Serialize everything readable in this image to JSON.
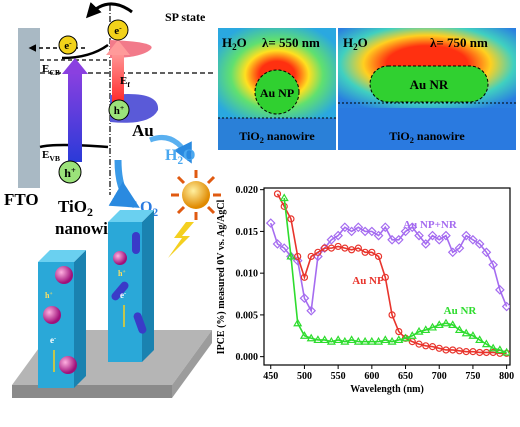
{
  "diagram": {
    "sp_state": "SP state",
    "e_cb": {
      "text": "E",
      "sub": "CB"
    },
    "e_f": {
      "text": "E",
      "sub": "f"
    },
    "e_vb": {
      "text": "E",
      "sub": "VB"
    },
    "electron": {
      "text": "e",
      "sup": "-"
    },
    "hole": {
      "text": "h",
      "sup": "+"
    },
    "au": "Au",
    "fto": "FTO",
    "tio2": {
      "text": "TiO",
      "sub": "2",
      "rest": "nanowire"
    },
    "h2o": {
      "text": "H",
      "sub": "2",
      "rest": "O"
    },
    "o2": {
      "text": "O",
      "sub": "2"
    }
  },
  "simulations": [
    {
      "medium": {
        "text": "H",
        "sub": "2",
        "rest": "O"
      },
      "wavelength": "λ= 550 nm",
      "particle": "Au NP",
      "substrate": {
        "text": "TiO",
        "sub": "2",
        "rest": " nanowire"
      }
    },
    {
      "medium": {
        "text": "H",
        "sub": "2",
        "rest": "O"
      },
      "wavelength": "λ= 750 nm",
      "particle": "Au NR",
      "substrate": {
        "text": "TiO",
        "sub": "2",
        "rest": " nanowire"
      }
    }
  ],
  "chart_data": {
    "type": "line",
    "x_label": "Wavelength (nm)",
    "y_label": "IPCE (%) measured 0V vs. Ag/AgCl",
    "x": [
      450,
      460,
      470,
      480,
      490,
      500,
      510,
      520,
      530,
      540,
      550,
      560,
      570,
      580,
      590,
      600,
      610,
      620,
      630,
      640,
      650,
      660,
      670,
      680,
      690,
      700,
      710,
      720,
      730,
      740,
      750,
      760,
      770,
      780,
      790,
      800
    ],
    "series": [
      {
        "name": "Au NP+NR",
        "color": "#a56cf0",
        "marker": "diamond",
        "values": [
          0.016,
          0.0135,
          0.013,
          0.012,
          0.0115,
          0.007,
          0.0055,
          0.012,
          0.013,
          0.014,
          0.0145,
          0.0155,
          0.015,
          0.0155,
          0.015,
          0.015,
          0.0145,
          0.0155,
          0.014,
          0.014,
          0.015,
          0.0155,
          0.0145,
          0.0135,
          0.0145,
          0.014,
          0.0145,
          0.0125,
          0.013,
          0.0145,
          0.014,
          0.0135,
          0.0125,
          0.011,
          0.008,
          0.006
        ]
      },
      {
        "name": "Au NP",
        "color": "#e8342c",
        "marker": "circle",
        "values": [
          null,
          0.0195,
          0.018,
          0.0165,
          0.012,
          0.0095,
          0.012,
          0.0125,
          0.013,
          0.013,
          0.0132,
          0.013,
          0.0128,
          0.013,
          0.0125,
          0.0125,
          0.012,
          0.0095,
          0.005,
          0.003,
          0.0022,
          0.0018,
          0.0015,
          0.0013,
          0.0012,
          0.001,
          0.0008,
          0.0008,
          0.0007,
          0.0006,
          0.0006,
          0.0005,
          0.0005,
          0.0005,
          0.0004,
          0.0004
        ]
      },
      {
        "name": "Au NR",
        "color": "#2edc2e",
        "marker": "triangle",
        "values": [
          null,
          null,
          0.019,
          0.012,
          0.004,
          0.0025,
          0.0022,
          0.002,
          0.002,
          0.0018,
          0.002,
          0.0018,
          0.002,
          0.0018,
          0.0018,
          0.0018,
          0.0018,
          0.002,
          0.0018,
          0.002,
          0.0022,
          0.0025,
          0.003,
          0.0032,
          0.0035,
          0.0038,
          0.004,
          0.0038,
          0.0032,
          0.0028,
          0.0025,
          0.002,
          0.0015,
          0.001,
          0.0008,
          0.0005
        ]
      }
    ],
    "xlim": [
      440,
      805
    ],
    "ylim": [
      -0.001,
      0.0202
    ],
    "xticks": [
      450,
      500,
      550,
      600,
      650,
      700,
      750,
      800
    ],
    "yticks": [
      {
        "value": 0,
        "label": "0.000"
      },
      {
        "value": 0.005,
        "label": "0.005"
      },
      {
        "value": 0.01,
        "label": "0.010"
      },
      {
        "value": 0.015,
        "label": "0.015"
      },
      {
        "value": 0.02,
        "label": "0.020"
      }
    ]
  }
}
